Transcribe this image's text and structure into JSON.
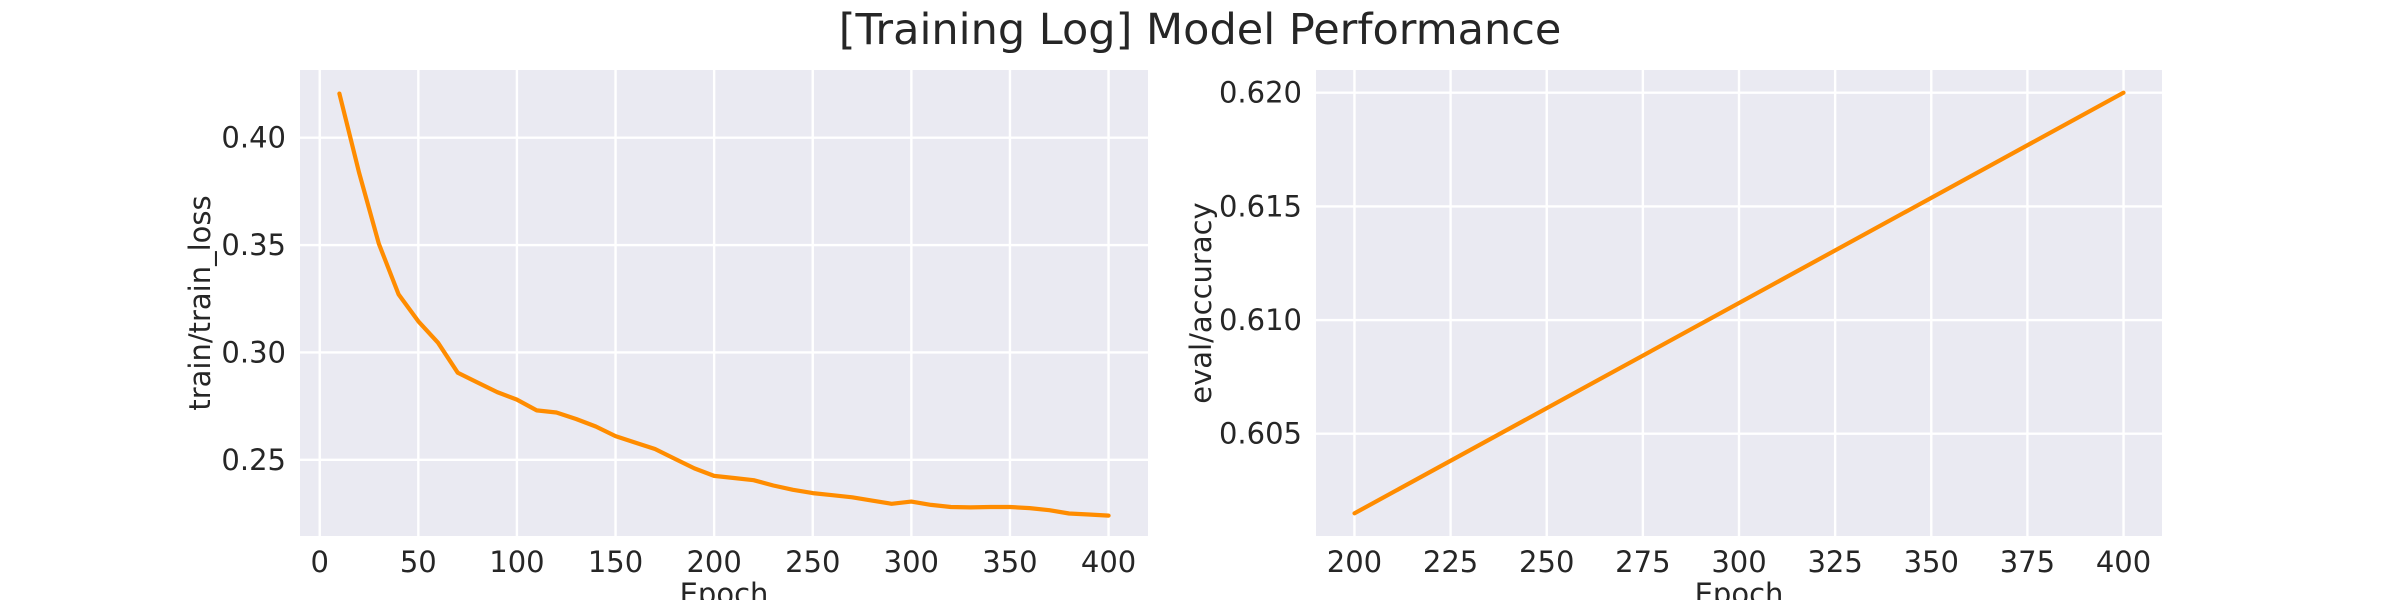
{
  "figure": {
    "title": "[Training Log] Model Performance"
  },
  "colors": {
    "series": "#ff8c00",
    "plot_background": "#eaeaf2",
    "grid": "#ffffff",
    "text": "#262626"
  },
  "chart_data": [
    {
      "type": "line",
      "title": "",
      "xlabel": "Epoch",
      "ylabel": "train/train_loss",
      "xlim": [
        -10,
        420
      ],
      "ylim": [
        0.2145,
        0.4315
      ],
      "xticks": [
        0,
        50,
        100,
        150,
        200,
        250,
        300,
        350,
        400
      ],
      "yticks": [
        0.25,
        0.3,
        0.35,
        0.4
      ],
      "ytick_labels": [
        "0.25",
        "0.30",
        "0.35",
        "0.40"
      ],
      "grid": true,
      "legend": "none",
      "series": [
        {
          "x": [
            10,
            20,
            30,
            40,
            50,
            60,
            70,
            80,
            90,
            100,
            110,
            120,
            130,
            140,
            150,
            160,
            170,
            180,
            190,
            200,
            210,
            220,
            230,
            240,
            250,
            260,
            270,
            280,
            290,
            300,
            310,
            320,
            330,
            340,
            350,
            360,
            370,
            380,
            390,
            400
          ],
          "values": [
            0.4205,
            0.3835,
            0.3505,
            0.327,
            0.3145,
            0.3045,
            0.2905,
            0.286,
            0.2815,
            0.278,
            0.273,
            0.272,
            0.269,
            0.2655,
            0.261,
            0.258,
            0.255,
            0.2505,
            0.246,
            0.2425,
            0.2415,
            0.2405,
            0.238,
            0.236,
            0.2345,
            0.2335,
            0.2325,
            0.231,
            0.2295,
            0.2305,
            0.229,
            0.228,
            0.2278,
            0.228,
            0.228,
            0.2275,
            0.2265,
            0.225,
            0.2245,
            0.224
          ]
        }
      ]
    },
    {
      "type": "line",
      "title": "",
      "xlabel": "Epoch",
      "ylabel": "eval/accuracy",
      "xlim": [
        190,
        410
      ],
      "ylim": [
        0.6005,
        0.621
      ],
      "xticks": [
        200,
        225,
        250,
        275,
        300,
        325,
        350,
        375,
        400
      ],
      "yticks": [
        0.605,
        0.61,
        0.615,
        0.62
      ],
      "ytick_labels": [
        "0.605",
        "0.610",
        "0.615",
        "0.620"
      ],
      "grid": true,
      "legend": "none",
      "series": [
        {
          "x": [
            200,
            400
          ],
          "values": [
            0.6015,
            0.62
          ]
        }
      ]
    }
  ]
}
